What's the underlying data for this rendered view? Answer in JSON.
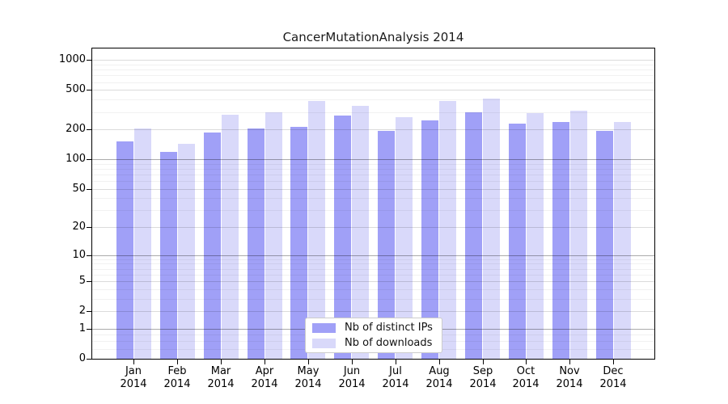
{
  "chart_data": {
    "type": "bar",
    "title": "CancerMutationAnalysis 2014",
    "categories": [
      "Jan 2014",
      "Feb 2014",
      "Mar 2014",
      "Apr 2014",
      "May 2014",
      "Jun 2014",
      "Jul 2014",
      "Aug 2014",
      "Sep 2014",
      "Oct 2014",
      "Nov 2014",
      "Dec 2014"
    ],
    "months": [
      "Jan",
      "Feb",
      "Mar",
      "Apr",
      "May",
      "Jun",
      "Jul",
      "Aug",
      "Sep",
      "Oct",
      "Nov",
      "Dec"
    ],
    "year": "2014",
    "series": [
      {
        "name": "Nb of distinct IPs",
        "values": [
          151,
          118,
          188,
          203,
          213,
          275,
          192,
          248,
          299,
          230,
          237,
          194
        ]
      },
      {
        "name": "Nb of downloads",
        "values": [
          203,
          144,
          284,
          299,
          389,
          347,
          264,
          384,
          408,
          295,
          308,
          237
        ]
      }
    ],
    "xlabel": "",
    "ylabel": "",
    "yscale": "log(value+1)",
    "yticks": [
      1000,
      500,
      200,
      100,
      50,
      20,
      10,
      5,
      2,
      1,
      0
    ],
    "ylim": [
      0,
      1337
    ],
    "grid": true,
    "legend_position": "lower center"
  },
  "colors": {
    "distinct_ips": "#a0a0f7",
    "downloads": "#d9d9fa",
    "axis": "#000000",
    "legend_border": "#cccccc",
    "grid_decade_values": [
      1,
      10,
      100
    ],
    "grid_labeled_values": [
      2,
      5,
      20,
      50,
      200,
      500,
      1000
    ],
    "grid_minor_values": [
      0.25,
      0.5,
      0.75,
      3,
      4,
      6,
      7,
      8,
      9,
      30,
      40,
      60,
      70,
      80,
      90,
      300,
      400,
      600,
      700,
      800,
      900
    ]
  }
}
